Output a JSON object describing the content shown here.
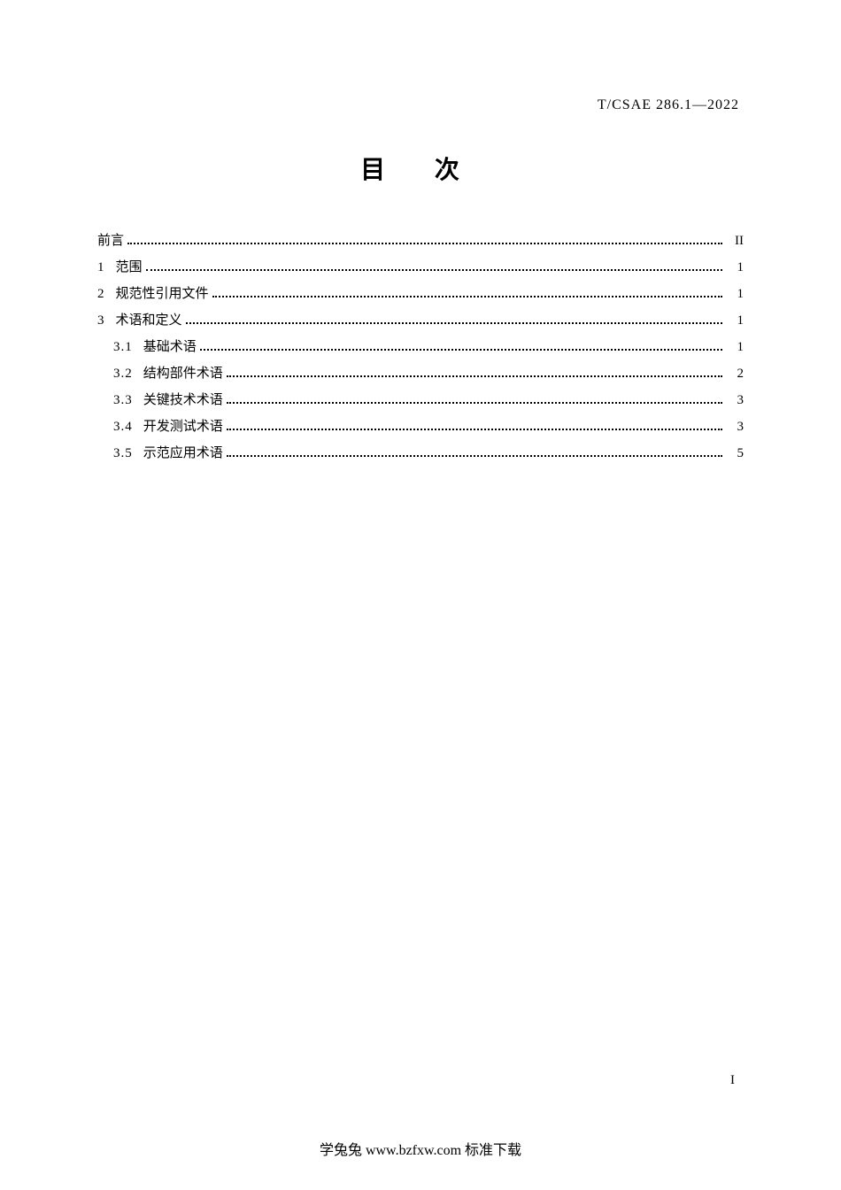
{
  "header_code": "T/CSAE 286.1—2022",
  "title": "目  次",
  "toc_entries": [
    {
      "level": 0,
      "number": "",
      "label": "前言",
      "page": "II"
    },
    {
      "level": 1,
      "number": "1",
      "label": "范围",
      "page": "1"
    },
    {
      "level": 1,
      "number": "2",
      "label": "规范性引用文件",
      "page": "1"
    },
    {
      "level": 1,
      "number": "3",
      "label": "术语和定义",
      "page": "1"
    },
    {
      "level": 2,
      "number": "3.1",
      "label": "基础术语",
      "page": "1"
    },
    {
      "level": 2,
      "number": "3.2",
      "label": "结构部件术语",
      "page": "2"
    },
    {
      "level": 2,
      "number": "3.3",
      "label": "关键技术术语",
      "page": "3"
    },
    {
      "level": 2,
      "number": "3.4",
      "label": "开发测试术语",
      "page": "3"
    },
    {
      "level": 2,
      "number": "3.5",
      "label": "示范应用术语",
      "page": "5"
    }
  ],
  "page_number": "I",
  "footer_text": "学兔兔 www.bzfxw.com 标准下载"
}
